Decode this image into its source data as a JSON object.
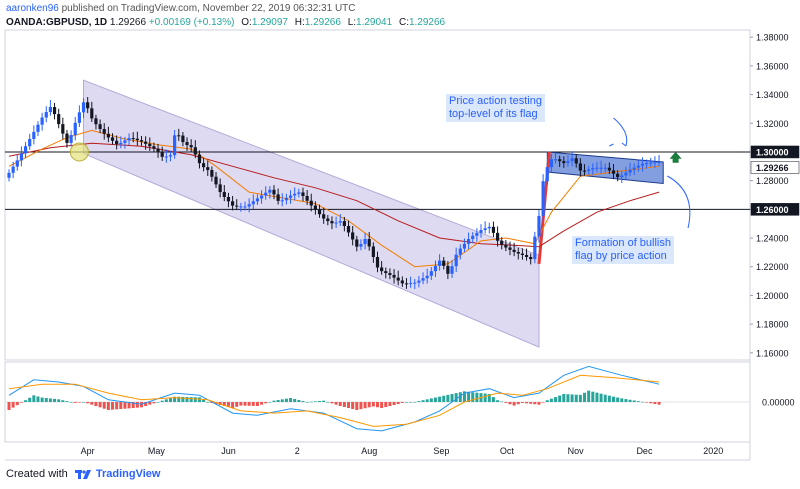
{
  "header": {
    "author": "aaronken96",
    "published_text": "published on TradingView.com, November 22, 2019 06:32:31 UTC",
    "symbol": "OANDA:GBPUSD, 1D",
    "last": "1.29266",
    "change": "+0.00169 (+0.13%)",
    "open_label": "O:",
    "open": "1.29097",
    "high_label": "H:",
    "high": "1.29266",
    "low_label": "L:",
    "low": "1.29041",
    "close_label": "C:",
    "close": "1.29266"
  },
  "footer": {
    "created_with": "Created with",
    "brand": "TradingView"
  },
  "annotations": {
    "top": [
      "Price action testing",
      "top-level of its flag"
    ],
    "bottom": [
      "Formation of bullish",
      "flag by price action"
    ]
  },
  "colors": {
    "up": "#2962ff",
    "down": "#131722",
    "channel_fill": "#d8d4ee",
    "sma_fast": "#f57c00",
    "sma_slow": "#b71c1c",
    "flag_fill": "#5b7fd6",
    "flag_pole": "#e53935",
    "arrow": "#1b7e3e",
    "macd": "#2196f3",
    "signal": "#ff9800",
    "hist_pos": "#26a69a",
    "hist_neg": "#ef5350"
  },
  "chart_data": {
    "type": "candlestick",
    "title": "",
    "x_axis_labels": [
      "Apr",
      "May",
      "Jun",
      "2",
      "Aug",
      "Sep",
      "Oct",
      "Nov",
      "Dec",
      "2020"
    ],
    "y_ticks": [
      "1.38000",
      "1.36000",
      "1.34000",
      "1.32000",
      "1.30000",
      "1.28000",
      "1.26000",
      "1.24000",
      "1.22000",
      "1.20000",
      "1.18000",
      "1.16000"
    ],
    "ylim": [
      1.155,
      1.385
    ],
    "horizontal_levels": [
      1.3,
      1.26
    ],
    "price_labels": [
      "1.30000",
      "1.29266",
      "1.26000"
    ],
    "current_price": 1.29266,
    "close_path": [
      [
        0,
        1.282
      ],
      [
        3,
        1.295
      ],
      [
        6,
        1.31
      ],
      [
        9,
        1.325
      ],
      [
        11,
        1.332
      ],
      [
        13,
        1.318
      ],
      [
        15,
        1.305
      ],
      [
        17,
        1.322
      ],
      [
        19,
        1.336
      ],
      [
        21,
        1.322
      ],
      [
        24,
        1.312
      ],
      [
        27,
        1.305
      ],
      [
        30,
        1.31
      ],
      [
        33,
        1.307
      ],
      [
        36,
        1.302
      ],
      [
        38,
        1.296
      ],
      [
        40,
        1.298
      ],
      [
        41,
        1.315
      ],
      [
        43,
        1.306
      ],
      [
        45,
        1.303
      ],
      [
        47,
        1.291
      ],
      [
        49,
        1.287
      ],
      [
        52,
        1.271
      ],
      [
        55,
        1.262
      ],
      [
        58,
        1.262
      ],
      [
        61,
        1.268
      ],
      [
        64,
        1.274
      ],
      [
        66,
        1.265
      ],
      [
        69,
        1.27
      ],
      [
        71,
        1.272
      ],
      [
        74,
        1.262
      ],
      [
        77,
        1.253
      ],
      [
        79,
        1.25
      ],
      [
        81,
        1.252
      ],
      [
        83,
        1.243
      ],
      [
        85,
        1.233
      ],
      [
        87,
        1.24
      ],
      [
        90,
        1.218
      ],
      [
        93,
        1.214
      ],
      [
        96,
        1.208
      ],
      [
        99,
        1.209
      ],
      [
        102,
        1.214
      ],
      [
        105,
        1.225
      ],
      [
        107,
        1.214
      ],
      [
        109,
        1.23
      ],
      [
        112,
        1.24
      ],
      [
        115,
        1.246
      ],
      [
        117,
        1.248
      ],
      [
        119,
        1.237
      ],
      [
        121,
        1.233
      ],
      [
        123,
        1.23
      ],
      [
        125,
        1.228
      ],
      [
        127,
        1.225
      ],
      [
        128,
        1.245
      ],
      [
        129,
        1.258
      ],
      [
        130,
        1.285
      ],
      [
        132,
        1.296
      ],
      [
        135,
        1.292
      ],
      [
        137,
        1.296
      ],
      [
        139,
        1.286
      ],
      [
        142,
        1.289
      ],
      [
        145,
        1.289
      ],
      [
        148,
        1.282
      ],
      [
        151,
        1.288
      ],
      [
        154,
        1.292
      ],
      [
        157,
        1.293
      ]
    ],
    "sma_fast_path": [
      [
        0,
        1.29
      ],
      [
        8,
        1.302
      ],
      [
        14,
        1.31
      ],
      [
        20,
        1.315
      ],
      [
        28,
        1.309
      ],
      [
        36,
        1.305
      ],
      [
        44,
        1.302
      ],
      [
        50,
        1.29
      ],
      [
        58,
        1.272
      ],
      [
        66,
        1.268
      ],
      [
        74,
        1.264
      ],
      [
        82,
        1.252
      ],
      [
        90,
        1.235
      ],
      [
        98,
        1.22
      ],
      [
        106,
        1.222
      ],
      [
        114,
        1.238
      ],
      [
        120,
        1.24
      ],
      [
        127,
        1.236
      ],
      [
        131,
        1.258
      ],
      [
        138,
        1.283
      ],
      [
        146,
        1.286
      ],
      [
        157,
        1.29
      ]
    ],
    "sma_slow_path": [
      [
        0,
        1.297
      ],
      [
        10,
        1.303
      ],
      [
        20,
        1.306
      ],
      [
        32,
        1.304
      ],
      [
        44,
        1.298
      ],
      [
        54,
        1.29
      ],
      [
        64,
        1.282
      ],
      [
        74,
        1.275
      ],
      [
        84,
        1.266
      ],
      [
        94,
        1.252
      ],
      [
        104,
        1.24
      ],
      [
        114,
        1.236
      ],
      [
        122,
        1.235
      ],
      [
        128,
        1.234
      ],
      [
        134,
        1.245
      ],
      [
        142,
        1.258
      ],
      [
        150,
        1.266
      ],
      [
        157,
        1.272
      ]
    ],
    "channel": {
      "upper": [
        [
          18,
          1.35
        ],
        [
          128,
          1.228
        ]
      ],
      "lower": [
        [
          18,
          1.299
        ],
        [
          128,
          1.164
        ]
      ]
    },
    "flag": {
      "top": [
        [
          130,
          1.3
        ],
        [
          158,
          1.293
        ]
      ],
      "bottom": [
        [
          130,
          1.286
        ],
        [
          158,
          1.278
        ]
      ]
    },
    "macd": {
      "zero_label": "0.00000",
      "ylim": [
        -0.018,
        0.018
      ],
      "macd_path": [
        [
          0,
          0.003
        ],
        [
          6,
          0.01
        ],
        [
          12,
          0.009
        ],
        [
          18,
          0.007
        ],
        [
          24,
          0.001
        ],
        [
          32,
          -0.001
        ],
        [
          40,
          0.004
        ],
        [
          46,
          0.003
        ],
        [
          54,
          -0.005
        ],
        [
          60,
          -0.006
        ],
        [
          68,
          -0.003
        ],
        [
          76,
          -0.005
        ],
        [
          84,
          -0.012
        ],
        [
          90,
          -0.013
        ],
        [
          98,
          -0.009
        ],
        [
          104,
          -0.004
        ],
        [
          110,
          0.004
        ],
        [
          116,
          0.006
        ],
        [
          122,
          0.002
        ],
        [
          128,
          0.004
        ],
        [
          134,
          0.012
        ],
        [
          140,
          0.016
        ],
        [
          148,
          0.012
        ],
        [
          157,
          0.008
        ]
      ],
      "signal_path": [
        [
          0,
          0.006
        ],
        [
          8,
          0.008
        ],
        [
          16,
          0.008
        ],
        [
          24,
          0.004
        ],
        [
          32,
          0.001
        ],
        [
          40,
          0.002
        ],
        [
          48,
          0.001
        ],
        [
          56,
          -0.004
        ],
        [
          64,
          -0.005
        ],
        [
          72,
          -0.004
        ],
        [
          80,
          -0.007
        ],
        [
          88,
          -0.011
        ],
        [
          96,
          -0.01
        ],
        [
          104,
          -0.006
        ],
        [
          110,
          0.0
        ],
        [
          118,
          0.004
        ],
        [
          124,
          0.003
        ],
        [
          130,
          0.006
        ],
        [
          138,
          0.012
        ],
        [
          146,
          0.011
        ],
        [
          157,
          0.009
        ]
      ]
    }
  }
}
